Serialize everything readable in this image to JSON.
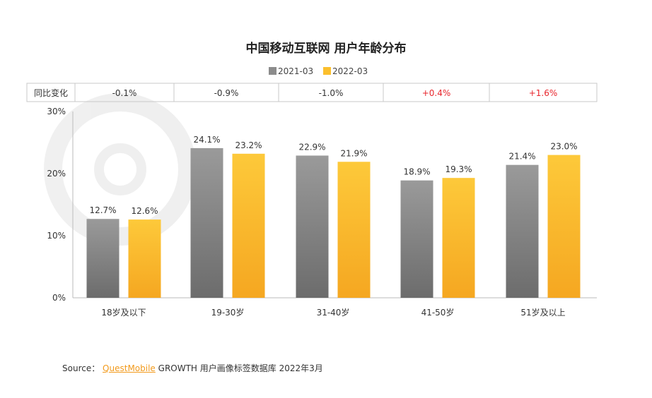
{
  "chart_data": {
    "type": "bar",
    "title": "中国移动互联网 用户年龄分布",
    "categories": [
      "18岁及以下",
      "19-30岁",
      "31-40岁",
      "41-50岁",
      "51岁及以上"
    ],
    "series": [
      {
        "name": "2021-03",
        "values": [
          12.7,
          24.1,
          22.9,
          18.9,
          21.4
        ],
        "labels": [
          "12.7%",
          "24.1%",
          "22.9%",
          "18.9%",
          "21.4%"
        ],
        "color": "#8c8c8c"
      },
      {
        "name": "2022-03",
        "values": [
          12.6,
          23.2,
          21.9,
          19.3,
          23.0
        ],
        "labels": [
          "12.6%",
          "23.2%",
          "21.9%",
          "19.3%",
          "23.0%"
        ],
        "color": "#fbbf2d"
      }
    ],
    "ylim": [
      0,
      30
    ],
    "yticks": [
      "0%",
      "10%",
      "20%",
      "30%"
    ],
    "ytick_values": [
      0,
      10,
      20,
      30
    ],
    "legend_position": "top-center",
    "change_row": {
      "label": "同比变化",
      "values": [
        "-0.1%",
        "-0.9%",
        "-1.0%",
        "+0.4%",
        "+1.6%"
      ],
      "positive_color": "#e8262d"
    }
  },
  "source": {
    "prefix": "Source：",
    "brand": "QuestMobile",
    "text": "GROWTH 用户画像标签数据库 2022年3月"
  }
}
